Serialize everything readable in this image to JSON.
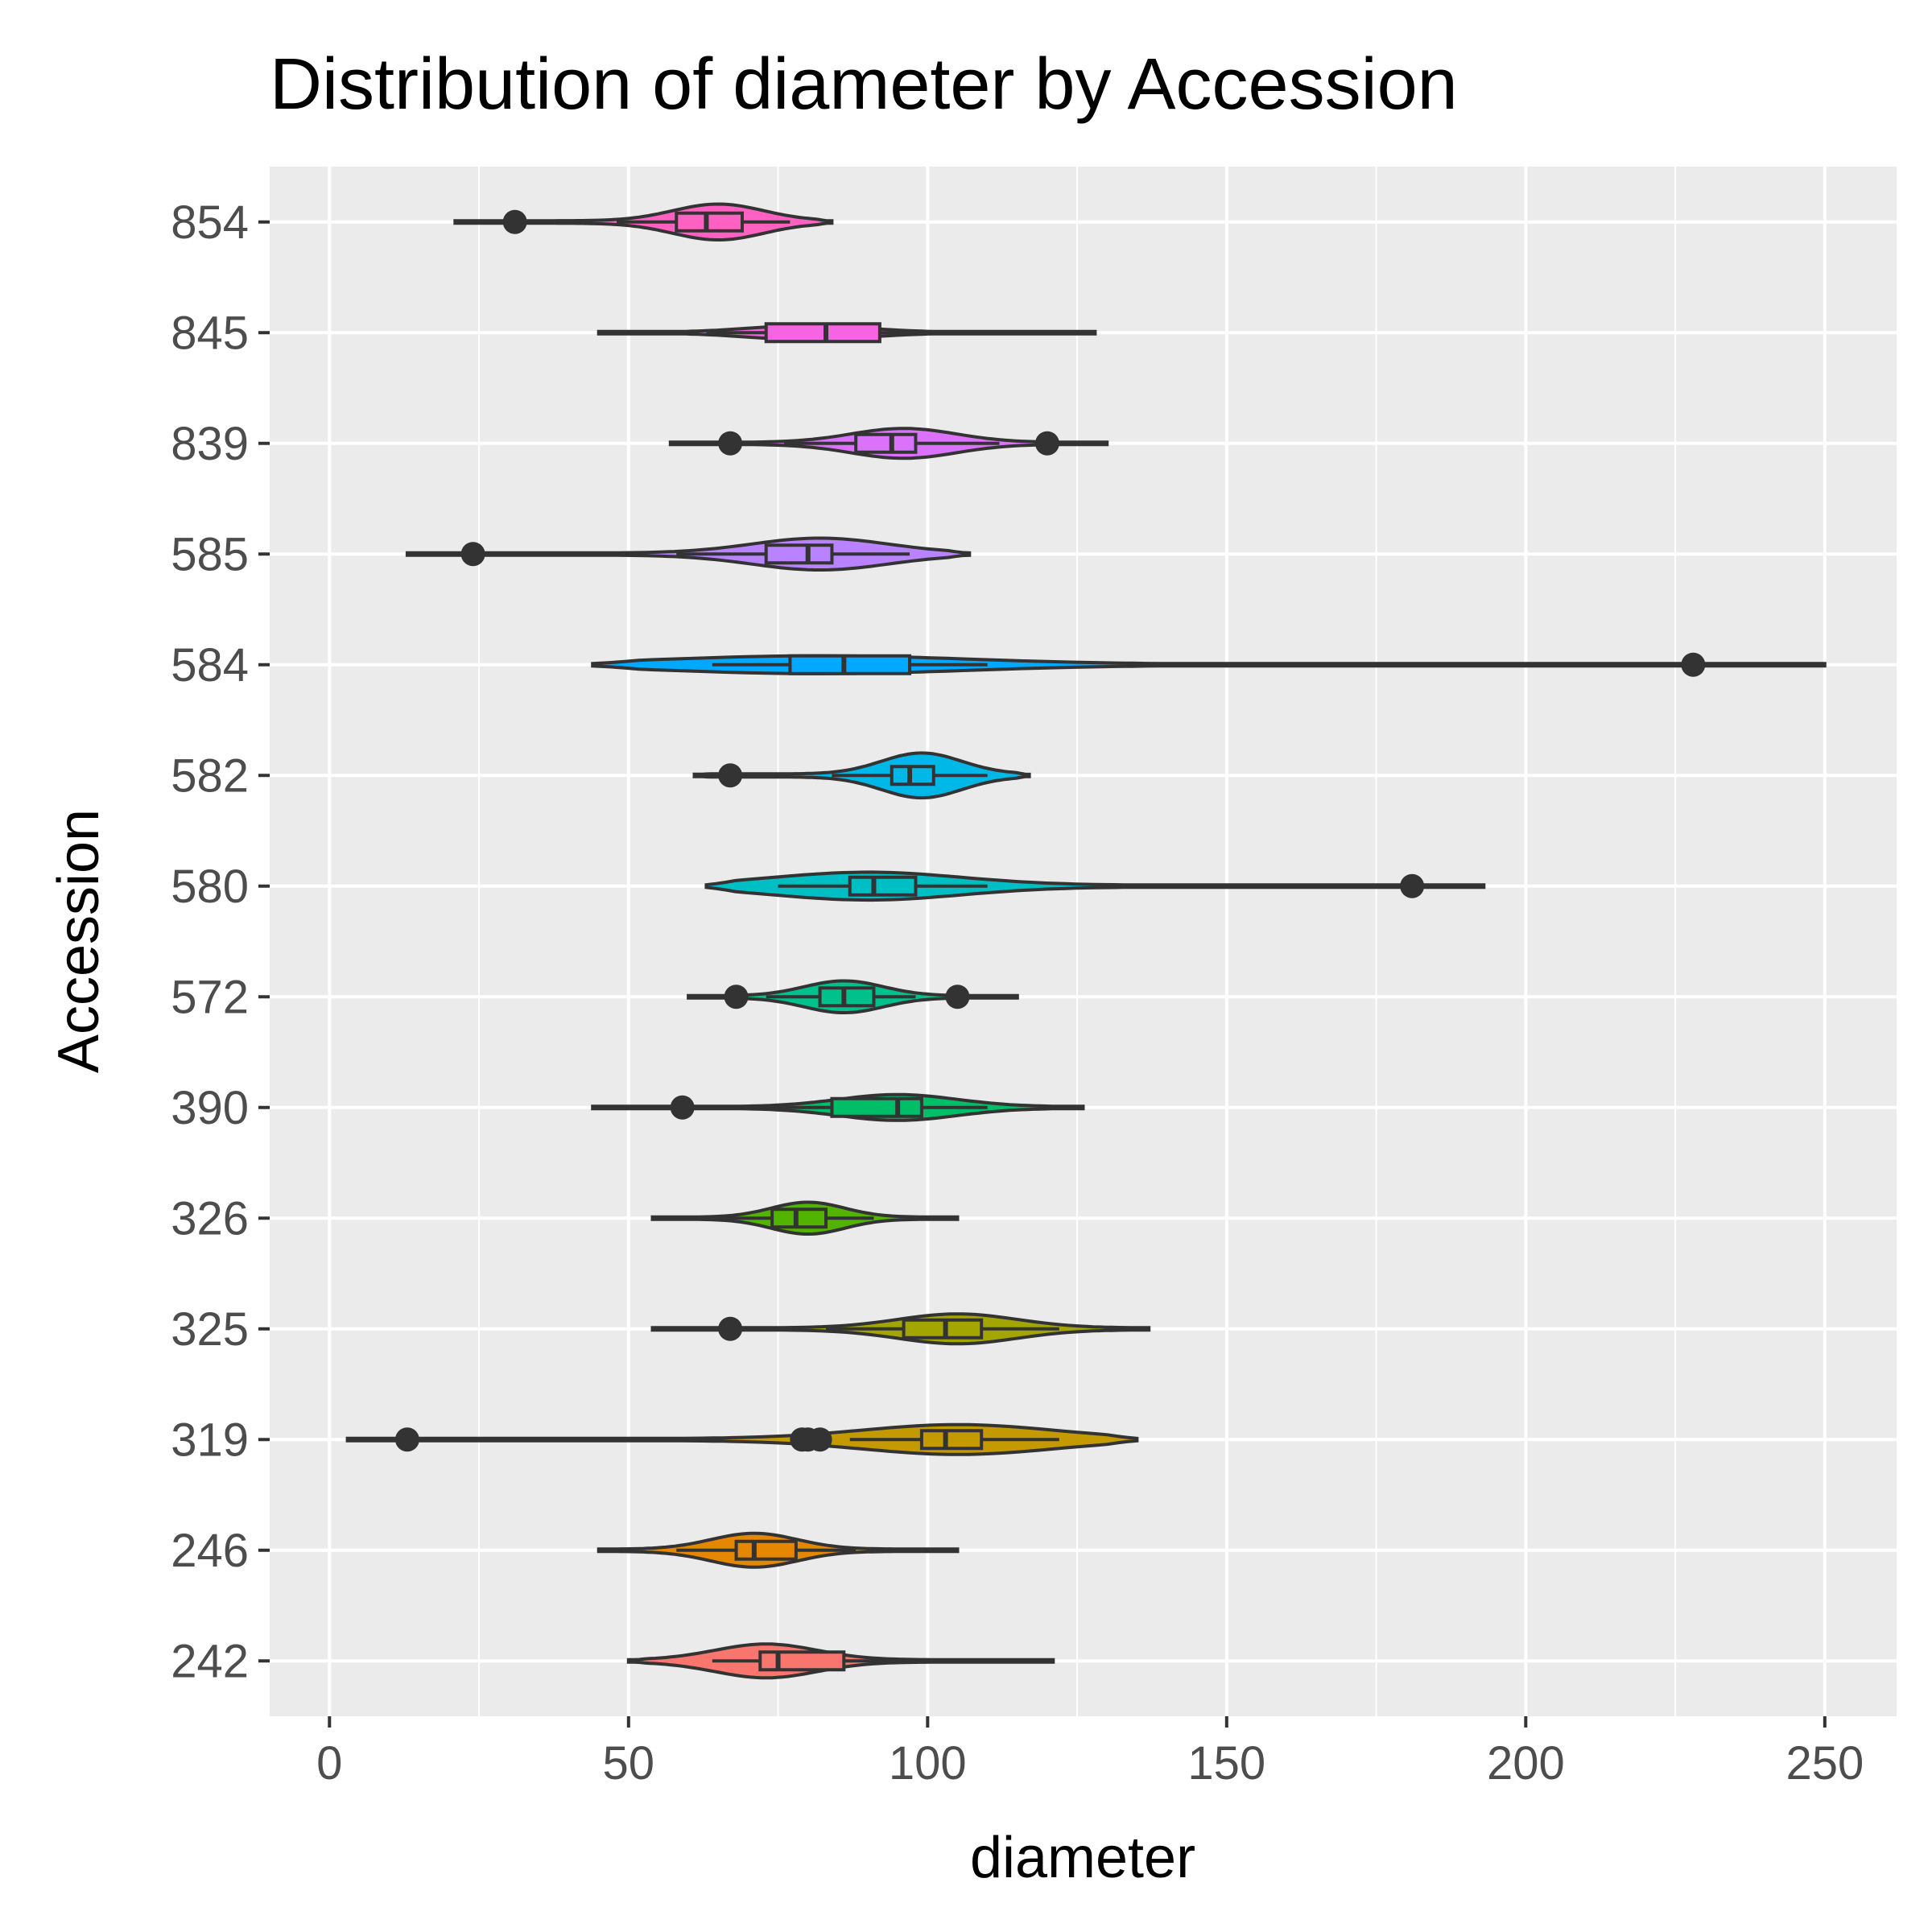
{
  "chart_data": {
    "type": "violin",
    "title": "Distribution of diameter by Accession",
    "xlabel": "diameter",
    "ylabel": "Accession",
    "xlim": [
      -10,
      262
    ],
    "x_ticks": [
      "0",
      "50",
      "100",
      "150",
      "200",
      "250"
    ],
    "grid": true,
    "legend": "none",
    "categories": [
      "854",
      "845",
      "839",
      "585",
      "584",
      "582",
      "580",
      "572",
      "390",
      "326",
      "325",
      "319",
      "246",
      "242"
    ],
    "series": [
      {
        "category": "854",
        "color": "#FF61C3",
        "min": 21,
        "max": 84,
        "mode": 65,
        "peak_width": 0.36,
        "q1": 58,
        "median": 63,
        "q3": 69,
        "whisker_low": 48,
        "whisker_high": 77,
        "outliers": [
          31
        ]
      },
      {
        "category": "845",
        "color": "#F564E3",
        "min": 45,
        "max": 128,
        "mode": 80,
        "peak_width": 0.14,
        "q1": 73,
        "median": 83,
        "q3": 92,
        "whisker_low": 63,
        "whisker_high": 100,
        "outliers": []
      },
      {
        "category": "839",
        "color": "#DB72FB",
        "min": 57,
        "max": 130,
        "mode": 96,
        "peak_width": 0.3,
        "q1": 88,
        "median": 94,
        "q3": 98,
        "whisker_low": 76,
        "whisker_high": 112,
        "outliers": [
          67,
          120
        ]
      },
      {
        "category": "585",
        "color": "#B983FF",
        "min": 13,
        "max": 107,
        "mode": 82,
        "peak_width": 0.32,
        "q1": 73,
        "median": 80,
        "q3": 84,
        "whisker_low": 58,
        "whisker_high": 97,
        "outliers": [
          24
        ]
      },
      {
        "category": "584",
        "color": "#00A9FF",
        "min": 44,
        "max": 250,
        "mode": 82,
        "peak_width": 0.18,
        "q1": 77,
        "median": 86,
        "q3": 97,
        "whisker_low": 64,
        "whisker_high": 110,
        "outliers": [
          228
        ]
      },
      {
        "category": "582",
        "color": "#00B8E7",
        "min": 61,
        "max": 117,
        "mode": 99,
        "peak_width": 0.45,
        "q1": 94,
        "median": 97,
        "q3": 101,
        "whisker_low": 84,
        "whisker_high": 110,
        "outliers": [
          67
        ]
      },
      {
        "category": "580",
        "color": "#00BFC4",
        "min": 63,
        "max": 193,
        "mode": 90,
        "peak_width": 0.28,
        "q1": 87,
        "median": 91,
        "q3": 98,
        "whisker_low": 75,
        "whisker_high": 110,
        "outliers": [
          181
        ]
      },
      {
        "category": "572",
        "color": "#00C08B",
        "min": 60,
        "max": 115,
        "mode": 86,
        "peak_width": 0.32,
        "q1": 82,
        "median": 86,
        "q3": 91,
        "whisker_low": 73,
        "whisker_high": 98,
        "outliers": [
          68,
          105
        ]
      },
      {
        "category": "390",
        "color": "#00BE67",
        "min": 44,
        "max": 126,
        "mode": 95,
        "peak_width": 0.26,
        "q1": 84,
        "median": 95,
        "q3": 99,
        "whisker_low": 68,
        "whisker_high": 110,
        "outliers": [
          59
        ]
      },
      {
        "category": "326",
        "color": "#53B400",
        "min": 54,
        "max": 105,
        "mode": 80,
        "peak_width": 0.32,
        "q1": 74,
        "median": 78,
        "q3": 83,
        "whisker_low": 64,
        "whisker_high": 91,
        "outliers": []
      },
      {
        "category": "325",
        "color": "#A3A500",
        "min": 54,
        "max": 137,
        "mode": 105,
        "peak_width": 0.3,
        "q1": 96,
        "median": 103,
        "q3": 109,
        "whisker_low": 83,
        "whisker_high": 122,
        "outliers": [
          67
        ]
      },
      {
        "category": "319",
        "color": "#C49A00",
        "min": 3,
        "max": 135,
        "mode": 105,
        "peak_width": 0.3,
        "q1": 99,
        "median": 103,
        "q3": 109,
        "whisker_low": 87,
        "whisker_high": 122,
        "outliers": [
          13,
          79,
          80,
          82
        ]
      },
      {
        "category": "246",
        "color": "#E58700",
        "min": 45,
        "max": 105,
        "mode": 71,
        "peak_width": 0.34,
        "q1": 68,
        "median": 71,
        "q3": 78,
        "whisker_low": 58,
        "whisker_high": 88,
        "outliers": []
      },
      {
        "category": "242",
        "color": "#F8766D",
        "min": 50,
        "max": 121,
        "mode": 73,
        "peak_width": 0.34,
        "q1": 72,
        "median": 75,
        "q3": 86,
        "whisker_low": 64,
        "whisker_high": 101,
        "outliers": []
      }
    ]
  }
}
